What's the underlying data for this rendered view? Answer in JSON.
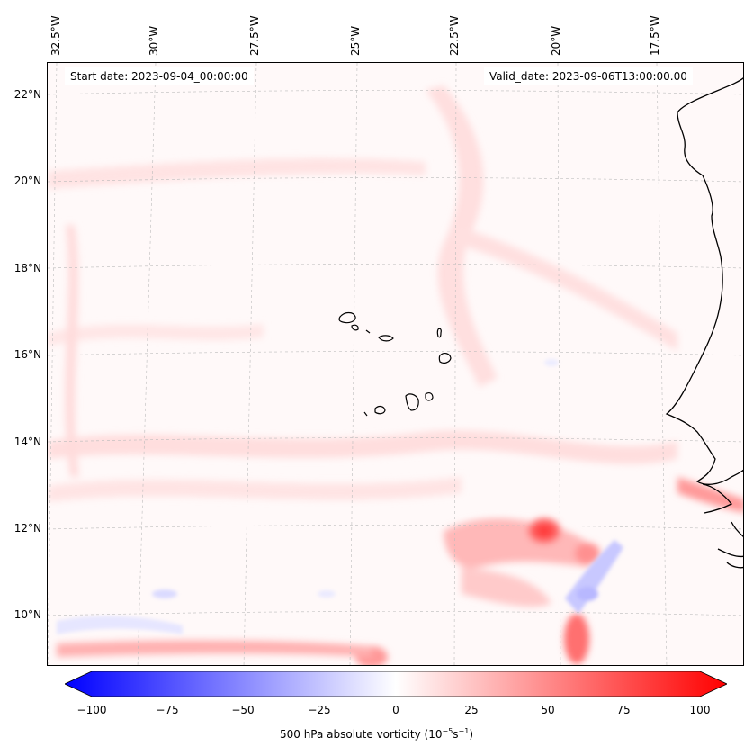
{
  "map": {
    "header_left": "Start date: 2023-09-04_00:00:00",
    "header_right": "Valid_date: 2023-09-06T13:00:00.00",
    "lon_labels": [
      "32.5°W",
      "30°W",
      "27.5°W",
      "25°W",
      "22.5°W",
      "20°W",
      "17.5°W"
    ],
    "lat_labels": [
      "22°N",
      "20°N",
      "18°N",
      "16°N",
      "14°N",
      "12°N",
      "10°N"
    ],
    "extent": {
      "lon_min": -33.0,
      "lon_max": -15.5,
      "lat_min": 8.9,
      "lat_max": 22.8
    },
    "colors": {
      "negative_max": "#0000ff",
      "neutral": "#ffffff",
      "positive_max": "#ff0000",
      "coastline": "#000000",
      "gridline": "#bbbbbb"
    }
  },
  "colorbar": {
    "ticks": [
      "−100",
      "−75",
      "−50",
      "−25",
      "0",
      "25",
      "50",
      "75",
      "100"
    ],
    "min": -100,
    "max": 100,
    "label_main": "500 hPa absolute vorticity (10",
    "label_exp1": "−5",
    "label_mid": "s",
    "label_exp2": "−1",
    "label_end": ")"
  }
}
